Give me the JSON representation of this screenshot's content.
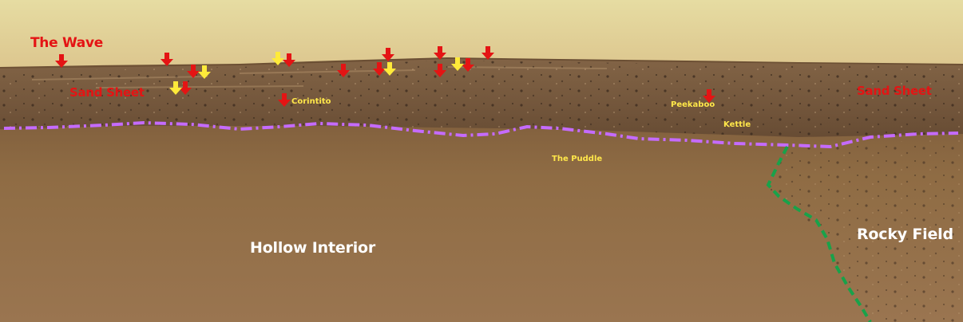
{
  "labels": {
    "the_wave": "The Wave",
    "sand_sheet_left": "Sand Sheet",
    "sand_sheet_right": "Sand Sheet",
    "corintito": "Corintito",
    "peekaboo": "Peekaboo",
    "kettle": "Kettle",
    "the_puddle": "The Puddle",
    "hollow_interior": "Hollow Interior",
    "rocky_field": "Rocky Field"
  },
  "colors": {
    "sky": "#eadfa3",
    "ground": "#8f6c43",
    "red_marker": "#e41414",
    "yellow_marker": "#ffea3a",
    "purple_boundary": "#c56bff",
    "green_boundary": "#18a24a"
  }
}
